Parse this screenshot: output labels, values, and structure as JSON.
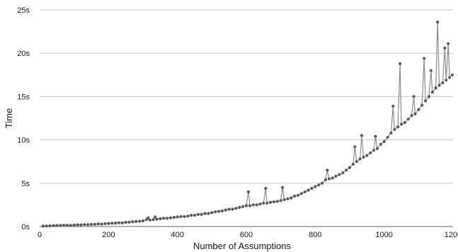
{
  "chart_data": {
    "type": "line",
    "title": "",
    "xlabel": "Number of Assumptions",
    "ylabel": "Time",
    "xlim": [
      0,
      1200
    ],
    "ylim": [
      0,
      25
    ],
    "x_ticks": [
      "0",
      "200",
      "400",
      "600",
      "800",
      "1000",
      "1200"
    ],
    "y_ticks": [
      "0s",
      "5s",
      "10s",
      "15s",
      "20s",
      "25s"
    ],
    "grid": "horizontal",
    "legend": "none",
    "series": [
      {
        "marker": "circle",
        "color": "#5a5a5f",
        "points": [
          [
            10,
            0.05
          ],
          [
            20,
            0.06
          ],
          [
            30,
            0.08
          ],
          [
            40,
            0.1
          ],
          [
            50,
            0.12
          ],
          [
            60,
            0.12
          ],
          [
            70,
            0.15
          ],
          [
            80,
            0.15
          ],
          [
            90,
            0.12
          ],
          [
            100,
            0.17
          ],
          [
            110,
            0.2
          ],
          [
            120,
            0.2
          ],
          [
            130,
            0.23
          ],
          [
            140,
            0.22
          ],
          [
            150,
            0.25
          ],
          [
            160,
            0.25
          ],
          [
            170,
            0.3
          ],
          [
            180,
            0.28
          ],
          [
            190,
            0.33
          ],
          [
            200,
            0.35
          ],
          [
            210,
            0.38
          ],
          [
            220,
            0.4
          ],
          [
            230,
            0.43
          ],
          [
            240,
            0.42
          ],
          [
            250,
            0.48
          ],
          [
            260,
            0.5
          ],
          [
            270,
            0.55
          ],
          [
            280,
            0.58
          ],
          [
            290,
            0.6
          ],
          [
            300,
            0.65
          ],
          [
            310,
            0.8
          ],
          [
            315,
            1.0
          ],
          [
            320,
            0.75
          ],
          [
            330,
            0.8
          ],
          [
            335,
            1.1
          ],
          [
            340,
            0.85
          ],
          [
            350,
            0.9
          ],
          [
            360,
            0.95
          ],
          [
            370,
            0.95
          ],
          [
            380,
            1.0
          ],
          [
            390,
            1.05
          ],
          [
            400,
            1.1
          ],
          [
            410,
            1.15
          ],
          [
            420,
            1.15
          ],
          [
            430,
            1.2
          ],
          [
            440,
            1.3
          ],
          [
            450,
            1.3
          ],
          [
            460,
            1.4
          ],
          [
            470,
            1.4
          ],
          [
            480,
            1.5
          ],
          [
            490,
            1.5
          ],
          [
            500,
            1.6
          ],
          [
            510,
            1.7
          ],
          [
            520,
            1.75
          ],
          [
            530,
            1.8
          ],
          [
            540,
            1.9
          ],
          [
            550,
            2.0
          ],
          [
            560,
            2.0
          ],
          [
            570,
            2.1
          ],
          [
            580,
            2.2
          ],
          [
            590,
            2.3
          ],
          [
            600,
            2.4
          ],
          [
            606,
            4.0
          ],
          [
            610,
            2.4
          ],
          [
            620,
            2.5
          ],
          [
            630,
            2.5
          ],
          [
            640,
            2.6
          ],
          [
            650,
            2.7
          ],
          [
            656,
            4.4
          ],
          [
            660,
            2.7
          ],
          [
            670,
            2.8
          ],
          [
            680,
            2.85
          ],
          [
            690,
            2.9
          ],
          [
            700,
            3.0
          ],
          [
            705,
            4.5
          ],
          [
            710,
            3.1
          ],
          [
            720,
            3.2
          ],
          [
            730,
            3.3
          ],
          [
            740,
            3.5
          ],
          [
            750,
            3.6
          ],
          [
            760,
            3.8
          ],
          [
            770,
            4.0
          ],
          [
            780,
            4.2
          ],
          [
            790,
            4.4
          ],
          [
            800,
            4.6
          ],
          [
            810,
            4.8
          ],
          [
            820,
            5.0
          ],
          [
            830,
            5.4
          ],
          [
            835,
            6.5
          ],
          [
            840,
            5.5
          ],
          [
            850,
            5.6
          ],
          [
            860,
            5.8
          ],
          [
            870,
            6.0
          ],
          [
            880,
            6.2
          ],
          [
            890,
            6.5
          ],
          [
            900,
            6.8
          ],
          [
            910,
            7.2
          ],
          [
            915,
            9.2
          ],
          [
            920,
            7.5
          ],
          [
            930,
            7.8
          ],
          [
            935,
            10.5
          ],
          [
            940,
            8.0
          ],
          [
            950,
            8.2
          ],
          [
            960,
            8.5
          ],
          [
            970,
            8.8
          ],
          [
            975,
            10.4
          ],
          [
            980,
            9.0
          ],
          [
            990,
            9.5
          ],
          [
            1000,
            9.8
          ],
          [
            1010,
            10.3
          ],
          [
            1020,
            10.8
          ],
          [
            1026,
            13.9
          ],
          [
            1030,
            11.2
          ],
          [
            1040,
            11.5
          ],
          [
            1046,
            18.8
          ],
          [
            1050,
            11.8
          ],
          [
            1060,
            12.0
          ],
          [
            1070,
            12.4
          ],
          [
            1080,
            12.8
          ],
          [
            1086,
            15.0
          ],
          [
            1090,
            13.0
          ],
          [
            1100,
            13.5
          ],
          [
            1110,
            14.0
          ],
          [
            1116,
            19.4
          ],
          [
            1120,
            14.5
          ],
          [
            1130,
            15.0
          ],
          [
            1136,
            18.0
          ],
          [
            1140,
            15.5
          ],
          [
            1150,
            16.0
          ],
          [
            1155,
            23.6
          ],
          [
            1160,
            16.3
          ],
          [
            1170,
            16.6
          ],
          [
            1176,
            20.6
          ],
          [
            1180,
            16.9
          ],
          [
            1186,
            21.1
          ],
          [
            1190,
            17.2
          ],
          [
            1198,
            17.5
          ]
        ]
      }
    ]
  }
}
